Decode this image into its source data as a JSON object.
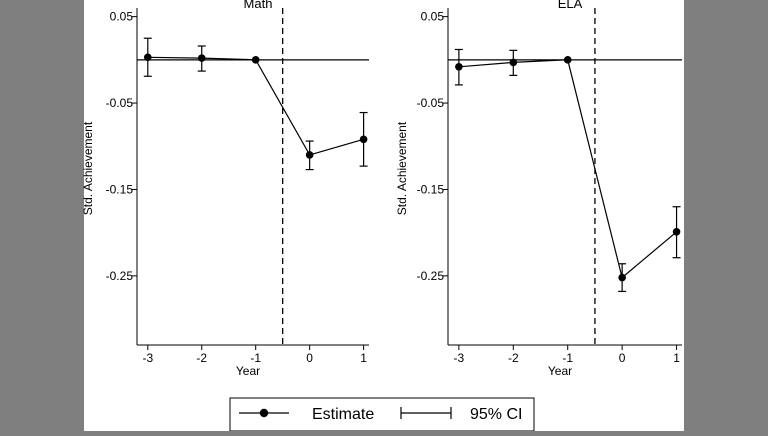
{
  "legend": {
    "estimate_label": "Estimate",
    "ci_label": "95% CI",
    "placement": "bottom-center"
  },
  "colors": {
    "background": "#7f7f7f",
    "panel": "#ffffff",
    "ink": "#000000"
  },
  "chart_data": [
    {
      "type": "line",
      "title": "Math",
      "xlabel": "Year",
      "ylabel": "Std. Achievement",
      "xlim": [
        -3.2,
        1.1
      ],
      "ylim": [
        -0.33,
        0.06
      ],
      "x_ticks": [
        -3,
        -2,
        -1,
        0,
        1
      ],
      "x_tick_labels": [
        "-3",
        "-2",
        "-1",
        "0",
        "1"
      ],
      "y_ticks": [
        0.05,
        -0.05,
        -0.15,
        -0.25
      ],
      "y_tick_labels": [
        "0.05",
        "-0.05",
        "-0.15",
        "-0.25"
      ],
      "reference_y": 0,
      "reference_x": -0.5,
      "grid": false,
      "series": [
        {
          "name": "Estimate",
          "x": [
            -3,
            -2,
            -1,
            0,
            1
          ],
          "y": [
            0.003,
            0.002,
            0.0,
            -0.11,
            -0.092
          ],
          "ci_low": [
            -0.019,
            -0.013,
            0.0,
            -0.127,
            -0.123
          ],
          "ci_high": [
            0.025,
            0.016,
            0.0,
            -0.094,
            -0.061
          ]
        }
      ]
    },
    {
      "type": "line",
      "title": "ELA",
      "xlabel": "Year",
      "ylabel": "Std. Achievement",
      "xlim": [
        -3.2,
        1.1
      ],
      "ylim": [
        -0.33,
        0.06
      ],
      "x_ticks": [
        -3,
        -2,
        -1,
        0,
        1
      ],
      "x_tick_labels": [
        "-3",
        "-2",
        "-1",
        "0",
        "1"
      ],
      "y_ticks": [
        0.05,
        -0.05,
        -0.15,
        -0.25
      ],
      "y_tick_labels": [
        "0.05",
        "-0.05",
        "-0.15",
        "-0.25"
      ],
      "reference_y": 0,
      "reference_x": -0.5,
      "grid": false,
      "series": [
        {
          "name": "Estimate",
          "x": [
            -3,
            -2,
            -1,
            0,
            1
          ],
          "y": [
            -0.008,
            -0.003,
            0.0,
            -0.252,
            -0.199
          ],
          "ci_low": [
            -0.029,
            -0.018,
            0.0,
            -0.268,
            -0.229
          ],
          "ci_high": [
            0.012,
            0.011,
            0.0,
            -0.236,
            -0.17
          ]
        }
      ]
    }
  ]
}
